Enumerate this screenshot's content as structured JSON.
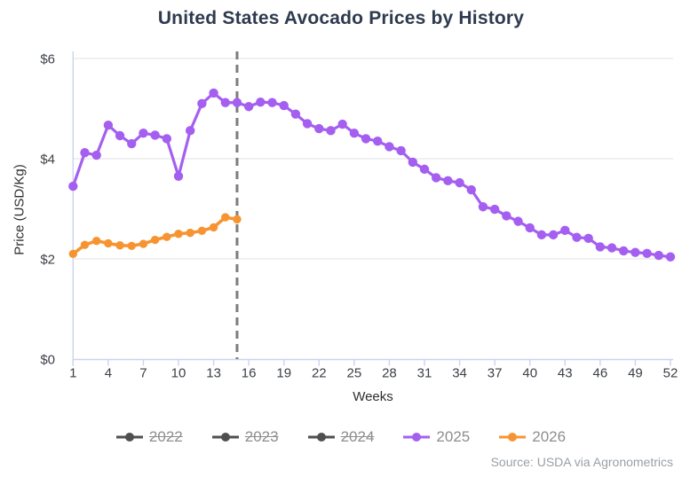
{
  "source_note": "Source: USDA via Agronometrics",
  "palette": {
    "title_text": "#2d3a4f",
    "tick_text": "#3b3f46",
    "axis_line": "#ccd3ee",
    "gridline": "#ececee",
    "marker_line": "#7d7d7d",
    "legend_text": "#8e8e8e",
    "disabled_series": "#4f4f4f",
    "series_2025": "#a55ff0",
    "series_2026": "#f79432",
    "source_text": "#9aa0a6"
  },
  "chart_data": {
    "type": "line",
    "title": "United States Avocado Prices by History",
    "xlabel": "Weeks",
    "ylabel": "Price (USD/Kg)",
    "xlim": [
      1,
      52
    ],
    "ylim": [
      0,
      6
    ],
    "x_ticks": [
      1,
      4,
      7,
      10,
      13,
      16,
      19,
      22,
      25,
      28,
      31,
      34,
      37,
      40,
      43,
      46,
      49,
      52
    ],
    "y_ticks": [
      {
        "value": 0,
        "label": "$0"
      },
      {
        "value": 2,
        "label": "$2"
      },
      {
        "value": 4,
        "label": "$4"
      },
      {
        "value": 6,
        "label": "$6"
      }
    ],
    "grid": "horizontal",
    "legend_position": "bottom",
    "vertical_dashed_marker_week": 15,
    "series": [
      {
        "name": "2022",
        "color": "#4f4f4f",
        "hidden": true,
        "start_week": 1,
        "values": []
      },
      {
        "name": "2023",
        "color": "#4f4f4f",
        "hidden": true,
        "start_week": 1,
        "values": []
      },
      {
        "name": "2024",
        "color": "#4f4f4f",
        "hidden": true,
        "start_week": 1,
        "values": []
      },
      {
        "name": "2025",
        "color": "#a55ff0",
        "hidden": false,
        "start_week": 1,
        "values": [
          3.45,
          4.12,
          4.07,
          4.67,
          4.46,
          4.3,
          4.51,
          4.47,
          4.4,
          3.65,
          4.56,
          5.1,
          5.31,
          5.12,
          5.12,
          5.04,
          5.13,
          5.12,
          5.06,
          4.89,
          4.7,
          4.6,
          4.56,
          4.69,
          4.51,
          4.4,
          4.35,
          4.24,
          4.16,
          3.93,
          3.79,
          3.62,
          3.56,
          3.52,
          3.38,
          3.04,
          2.99,
          2.86,
          2.75,
          2.62,
          2.48,
          2.48,
          2.57,
          2.43,
          2.41,
          2.24,
          2.22,
          2.16,
          2.13,
          2.11,
          2.07,
          2.04
        ]
      },
      {
        "name": "2026",
        "color": "#f79432",
        "hidden": false,
        "start_week": 1,
        "values": [
          2.1,
          2.28,
          2.36,
          2.31,
          2.27,
          2.26,
          2.3,
          2.38,
          2.44,
          2.5,
          2.52,
          2.56,
          2.63,
          2.83,
          2.79
        ]
      }
    ]
  }
}
